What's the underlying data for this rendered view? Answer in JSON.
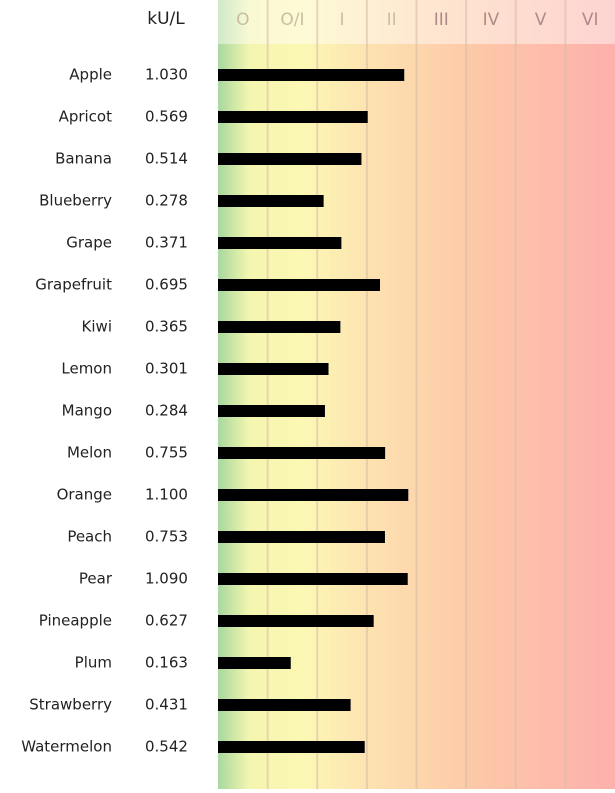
{
  "chart_data": {
    "type": "bar",
    "orientation": "horizontal",
    "unit_label": "kU/L",
    "classes": [
      "O",
      "O/I",
      "I",
      "II",
      "III",
      "IV",
      "V",
      "VI"
    ],
    "categories": [
      "Apple",
      "Apricot",
      "Banana",
      "Blueberry",
      "Grape",
      "Grapefruit",
      "Kiwi",
      "Lemon",
      "Mango",
      "Melon",
      "Orange",
      "Peach",
      "Pear",
      "Pineapple",
      "Plum",
      "Strawberry",
      "Watermelon"
    ],
    "values": [
      1.03,
      0.569,
      0.514,
      0.278,
      0.371,
      0.695,
      0.365,
      0.301,
      0.284,
      0.755,
      1.1,
      0.753,
      1.09,
      0.627,
      0.163,
      0.431,
      0.542
    ],
    "value_labels": [
      "1.030",
      "0.569",
      "0.514",
      "0.278",
      "0.371",
      "0.695",
      "0.365",
      "0.301",
      "0.284",
      "0.755",
      "1.100",
      "0.753",
      "1.090",
      "0.627",
      "0.163",
      "0.431",
      "0.542"
    ],
    "color": "#000000",
    "xlim": [
      0.05,
      31.6
    ],
    "log": true
  }
}
